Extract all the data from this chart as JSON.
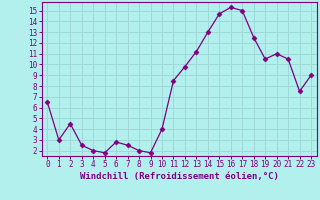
{
  "x": [
    0,
    1,
    2,
    3,
    4,
    5,
    6,
    7,
    8,
    9,
    10,
    11,
    12,
    13,
    14,
    15,
    16,
    17,
    18,
    19,
    20,
    21,
    22,
    23
  ],
  "y": [
    6.5,
    3.0,
    4.5,
    2.5,
    2.0,
    1.8,
    2.8,
    2.5,
    2.0,
    1.8,
    4.0,
    8.5,
    9.8,
    11.2,
    13.0,
    14.7,
    15.3,
    15.0,
    12.5,
    10.5,
    11.0,
    10.5,
    7.5,
    9.0
  ],
  "xlim": [
    -0.5,
    23.5
  ],
  "ylim": [
    1.5,
    15.8
  ],
  "yticks": [
    2,
    3,
    4,
    5,
    6,
    7,
    8,
    9,
    10,
    11,
    12,
    13,
    14,
    15
  ],
  "xticks": [
    0,
    1,
    2,
    3,
    4,
    5,
    6,
    7,
    8,
    9,
    10,
    11,
    12,
    13,
    14,
    15,
    16,
    17,
    18,
    19,
    20,
    21,
    22,
    23
  ],
  "xlabel": "Windchill (Refroidissement éolien,°C)",
  "line_color": "#800080",
  "marker": "D",
  "marker_size": 2.5,
  "bg_color": "#b2f0ee",
  "grid_color": "#a0d8d8",
  "axis_color": "#800080",
  "tick_fontsize": 5.5,
  "label_fontsize": 6.5
}
